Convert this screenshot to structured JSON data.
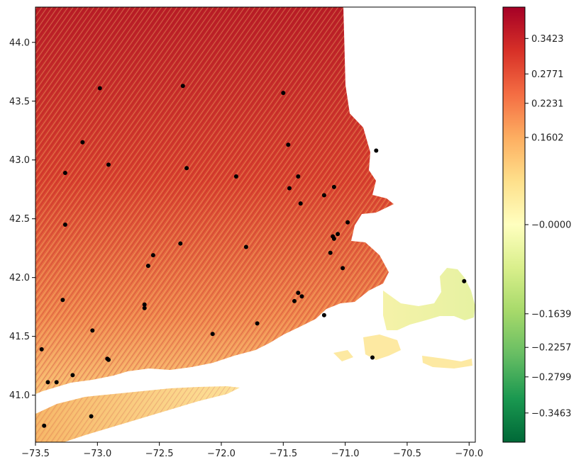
{
  "chart_data": {
    "type": "heatmap",
    "title": "",
    "xlabel": "",
    "ylabel": "",
    "xlim": [
      -73.5,
      -69.95
    ],
    "ylim": [
      40.6,
      44.3
    ],
    "x_ticks": [
      "−73.5",
      "−73.0",
      "−72.5",
      "−72.0",
      "−71.5",
      "−71.0",
      "−70.5",
      "−70.0"
    ],
    "x_tick_values": [
      -73.5,
      -73.0,
      -72.5,
      -72.0,
      -71.5,
      -71.0,
      -70.5,
      -70.0
    ],
    "y_ticks": [
      "41.0",
      "41.5",
      "42.0",
      "42.5",
      "43.0",
      "43.5",
      "44.0"
    ],
    "y_tick_values": [
      41.0,
      41.5,
      42.0,
      42.5,
      43.0,
      43.5,
      44.0
    ],
    "colormap": "RdYlGn_r",
    "colorbar_range": [
      -0.4,
      0.4
    ],
    "colorbar_ticks": [
      "0.3423",
      "0.2771",
      "0.2231",
      "0.1602",
      "−0.0000",
      "−0.1639",
      "−0.2257",
      "−0.2799",
      "−0.3463"
    ],
    "colorbar_tick_values": [
      0.3423,
      0.2771,
      0.2231,
      0.1602,
      0.0,
      -0.1639,
      -0.2257,
      -0.2799,
      -0.3463
    ],
    "colors": {
      "low": "#006837",
      "mid": "#ffffbf",
      "high": "#a50026",
      "point": "#000000"
    },
    "land_rough_values": {
      "inland_north": 0.33,
      "inland_south": 0.22,
      "long_island": 0.15,
      "cape_cod": -0.05
    },
    "points": [
      {
        "x": -72.98,
        "y": 43.61
      },
      {
        "x": -72.31,
        "y": 43.63
      },
      {
        "x": -71.5,
        "y": 43.57
      },
      {
        "x": -73.12,
        "y": 43.15
      },
      {
        "x": -71.46,
        "y": 43.13
      },
      {
        "x": -70.75,
        "y": 43.08
      },
      {
        "x": -72.91,
        "y": 42.96
      },
      {
        "x": -72.28,
        "y": 42.93
      },
      {
        "x": -73.26,
        "y": 42.89
      },
      {
        "x": -71.88,
        "y": 42.86
      },
      {
        "x": -71.38,
        "y": 42.86
      },
      {
        "x": -71.45,
        "y": 42.76
      },
      {
        "x": -71.09,
        "y": 42.77
      },
      {
        "x": -71.17,
        "y": 42.7
      },
      {
        "x": -71.36,
        "y": 42.63
      },
      {
        "x": -70.98,
        "y": 42.47
      },
      {
        "x": -73.26,
        "y": 42.45
      },
      {
        "x": -71.06,
        "y": 42.37
      },
      {
        "x": -71.1,
        "y": 42.35
      },
      {
        "x": -71.09,
        "y": 42.33
      },
      {
        "x": -72.33,
        "y": 42.29
      },
      {
        "x": -71.8,
        "y": 42.26
      },
      {
        "x": -72.55,
        "y": 42.19
      },
      {
        "x": -71.12,
        "y": 42.21
      },
      {
        "x": -72.59,
        "y": 42.1
      },
      {
        "x": -71.02,
        "y": 42.08
      },
      {
        "x": -70.04,
        "y": 41.97
      },
      {
        "x": -71.38,
        "y": 41.87
      },
      {
        "x": -71.35,
        "y": 41.84
      },
      {
        "x": -73.28,
        "y": 41.81
      },
      {
        "x": -71.41,
        "y": 41.8
      },
      {
        "x": -72.62,
        "y": 41.77
      },
      {
        "x": -72.62,
        "y": 41.74
      },
      {
        "x": -71.17,
        "y": 41.68
      },
      {
        "x": -71.71,
        "y": 41.61
      },
      {
        "x": -73.04,
        "y": 41.55
      },
      {
        "x": -72.07,
        "y": 41.52
      },
      {
        "x": -73.45,
        "y": 41.39
      },
      {
        "x": -70.78,
        "y": 41.32
      },
      {
        "x": -72.92,
        "y": 41.31
      },
      {
        "x": -72.91,
        "y": 41.3
      },
      {
        "x": -73.2,
        "y": 41.17
      },
      {
        "x": -73.4,
        "y": 41.11
      },
      {
        "x": -73.33,
        "y": 41.11
      },
      {
        "x": -73.05,
        "y": 40.82
      },
      {
        "x": -73.43,
        "y": 40.74
      }
    ]
  }
}
